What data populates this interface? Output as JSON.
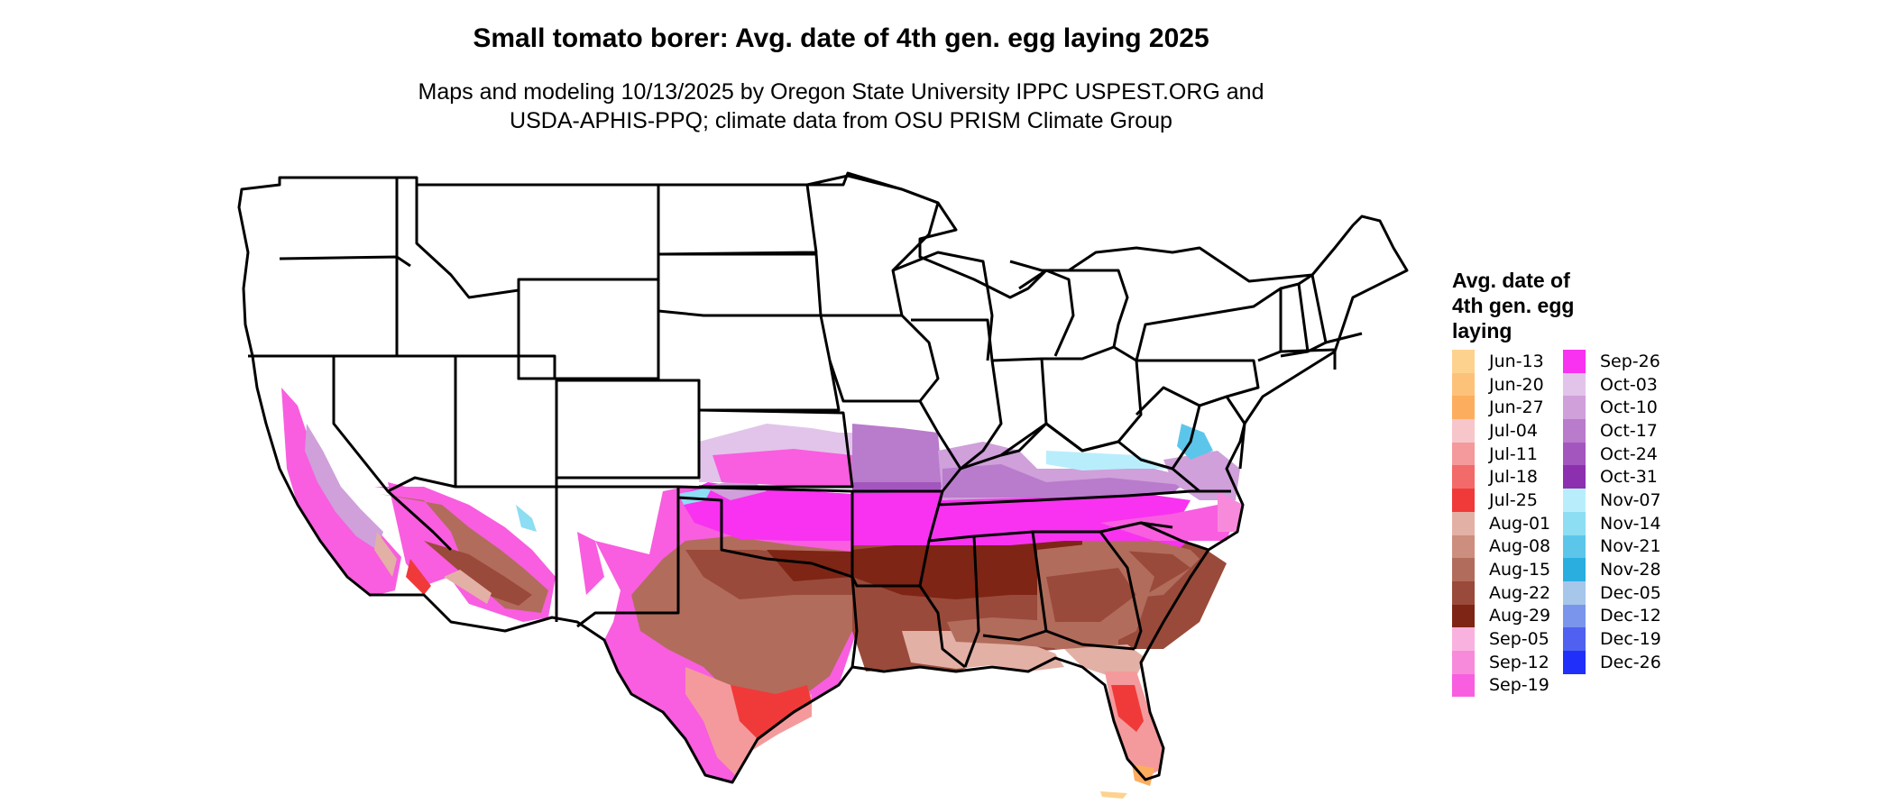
{
  "title": "Small tomato borer: Avg. date of 4th gen. egg laying 2025",
  "subtitle": {
    "line1": "Maps and modeling 10/13/2025 by Oregon State University IPPC USPEST.ORG and",
    "line2": "USDA-APHIS-PPQ; climate data from OSU PRISM Climate Group"
  },
  "legend": {
    "title_lines": [
      "Avg. date of",
      "4th gen. egg",
      "laying"
    ],
    "items": [
      {
        "label": "Jun-13",
        "color": "#FDD28F"
      },
      {
        "label": "Jun-20",
        "color": "#FDC27A"
      },
      {
        "label": "Jun-27",
        "color": "#FCAE5E"
      },
      {
        "label": "Jul-04",
        "color": "#F7C6CB"
      },
      {
        "label": "Jul-11",
        "color": "#F49A9C"
      },
      {
        "label": "Jul-18",
        "color": "#F26A6A"
      },
      {
        "label": "Jul-25",
        "color": "#F03A3A"
      },
      {
        "label": "Aug-01",
        "color": "#E3B0A5"
      },
      {
        "label": "Aug-08",
        "color": "#CC8E7E"
      },
      {
        "label": "Aug-15",
        "color": "#B26C5C"
      },
      {
        "label": "Aug-22",
        "color": "#9A4A3A"
      },
      {
        "label": "Aug-29",
        "color": "#7E2515"
      },
      {
        "label": "Sep-05",
        "color": "#F9B2DF"
      },
      {
        "label": "Sep-12",
        "color": "#F88ADB"
      },
      {
        "label": "Sep-19",
        "color": "#F85EDF"
      },
      {
        "label": "Sep-26",
        "color": "#F832F0"
      },
      {
        "label": "Oct-03",
        "color": "#E2C4EA"
      },
      {
        "label": "Oct-10",
        "color": "#CFA0DA"
      },
      {
        "label": "Oct-17",
        "color": "#B97BCC"
      },
      {
        "label": "Oct-24",
        "color": "#A456BF"
      },
      {
        "label": "Oct-31",
        "color": "#8C30B0"
      },
      {
        "label": "Nov-07",
        "color": "#B8EEFC"
      },
      {
        "label": "Nov-14",
        "color": "#8DDDF3"
      },
      {
        "label": "Nov-21",
        "color": "#5CC6EA"
      },
      {
        "label": "Nov-28",
        "color": "#2AAEE0"
      },
      {
        "label": "Dec-05",
        "color": "#A6C6EA"
      },
      {
        "label": "Dec-12",
        "color": "#7996EC"
      },
      {
        "label": "Dec-19",
        "color": "#5060F0"
      },
      {
        "label": "Dec-26",
        "color": "#2030FA"
      }
    ]
  }
}
